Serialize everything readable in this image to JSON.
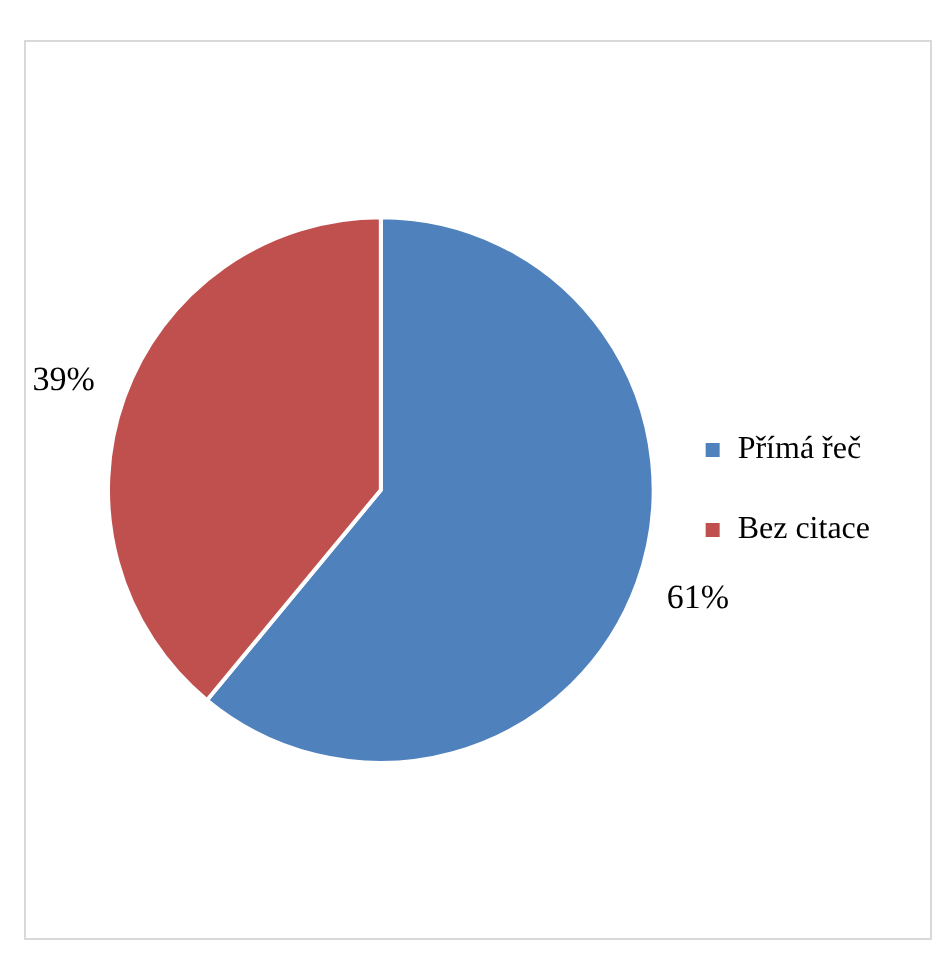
{
  "chart_data": {
    "type": "pie",
    "categories": [
      "Přímá řeč",
      "Bez citace"
    ],
    "values": [
      61,
      39
    ],
    "colors": [
      "#4f81bd",
      "#c0504d"
    ],
    "value_labels": [
      "61%",
      "39%"
    ],
    "legend": "right"
  }
}
